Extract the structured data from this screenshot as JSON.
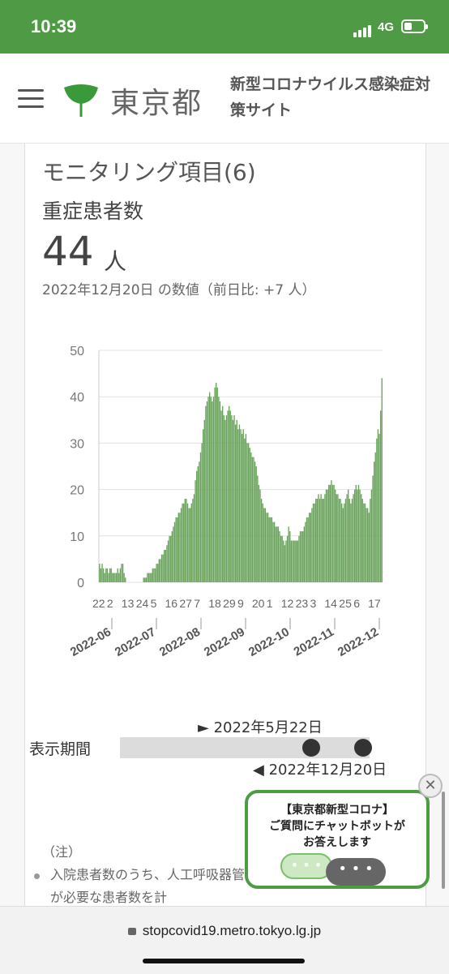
{
  "status_bar": {
    "time": "10:39",
    "network": "4G"
  },
  "header": {
    "logo_text": "東京都",
    "site_title": "新型コロナウイルス感染症対策サイト"
  },
  "card": {
    "title": "モニタリング項目(6)",
    "subtitle": "重症患者数",
    "value": "44",
    "unit": "人",
    "date_line": "2022年12月20日 の数値（前日比: +7 人）"
  },
  "chart_data": {
    "type": "bar",
    "color": "#6aa35c",
    "ylim": [
      0,
      50
    ],
    "yticks": [
      0,
      10,
      20,
      30,
      40,
      50
    ],
    "grid": true,
    "x_tick_labels": [
      "22",
      "2",
      "13",
      "24",
      "5",
      "16",
      "27",
      "7",
      "18",
      "29",
      "9",
      "20",
      "1",
      "12",
      "23",
      "3",
      "14",
      "25",
      "6",
      "17"
    ],
    "month_labels": [
      "2022-06",
      "2022-07",
      "2022-08",
      "2022-09",
      "2022-10",
      "2022-11",
      "2022-12"
    ],
    "x_start": "2022-05-22",
    "x_end": "2022-12-20",
    "values": [
      4,
      3,
      4,
      3,
      2,
      3,
      3,
      2,
      3,
      3,
      2,
      2,
      2,
      2,
      3,
      2,
      3,
      4,
      4,
      2,
      1,
      0,
      0,
      0,
      0,
      0,
      0,
      0,
      0,
      0,
      0,
      0,
      0,
      0,
      1,
      1,
      1,
      2,
      2,
      2,
      2,
      3,
      3,
      3,
      4,
      4,
      5,
      5,
      6,
      6,
      7,
      7,
      8,
      9,
      10,
      10,
      11,
      12,
      13,
      14,
      14,
      15,
      15,
      16,
      17,
      17,
      18,
      18,
      17,
      16,
      16,
      17,
      18,
      19,
      22,
      24,
      25,
      26,
      28,
      30,
      33,
      35,
      38,
      39,
      40,
      41,
      40,
      39,
      40,
      42,
      43,
      42,
      40,
      39,
      37,
      38,
      36,
      35,
      36,
      37,
      38,
      37,
      36,
      35,
      36,
      34,
      35,
      33,
      34,
      33,
      32,
      33,
      31,
      32,
      30,
      30,
      29,
      28,
      27,
      27,
      26,
      25,
      23,
      21,
      20,
      18,
      17,
      16,
      16,
      15,
      15,
      14,
      14,
      14,
      13,
      13,
      12,
      12,
      12,
      11,
      10,
      10,
      9,
      8,
      9,
      10,
      12,
      11,
      9,
      9,
      9,
      9,
      9,
      9,
      10,
      11,
      11,
      11,
      12,
      13,
      14,
      14,
      15,
      15,
      16,
      17,
      17,
      18,
      18,
      19,
      18,
      19,
      18,
      18,
      19,
      20,
      20,
      21,
      21,
      22,
      21,
      21,
      20,
      19,
      19,
      18,
      18,
      17,
      16,
      17,
      18,
      19,
      20,
      18,
      17,
      18,
      19,
      20,
      21,
      20,
      21,
      20,
      19,
      18,
      17,
      17,
      16,
      16,
      15,
      18,
      20,
      23,
      26,
      28,
      31,
      33,
      32,
      37,
      44
    ]
  },
  "slider": {
    "label": "表示期間",
    "start": "► 2022年5月22日",
    "end": "◀ 2022年12月20日"
  },
  "notes": {
    "heading": "（注）",
    "item": "入院患者数のうち、人工呼吸器管理（ECMOを含む）が必要な患者数を計"
  },
  "chatbot": {
    "line1": "【東京都新型コロナ】",
    "line2": "ご質問にチャットボットが",
    "line3": "お答えします",
    "bubble1": "• • •",
    "bubble2": "• • •",
    "close": "✕"
  },
  "browser": {
    "url": "stopcovid19.metro.tokyo.lg.jp"
  }
}
